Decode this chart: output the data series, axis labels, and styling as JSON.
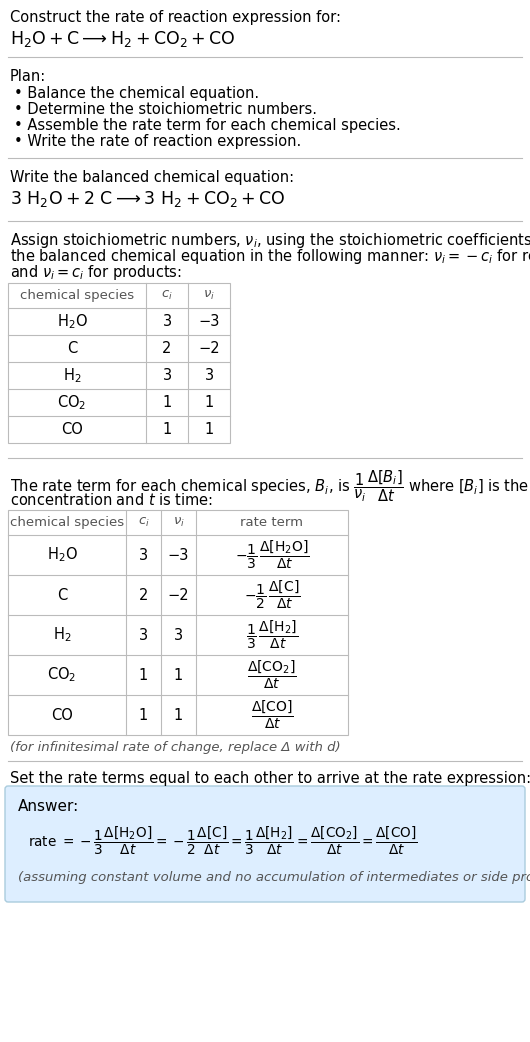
{
  "title_line1": "Construct the rate of reaction expression for:",
  "plan_header": "Plan:",
  "plan_items": [
    "• Balance the chemical equation.",
    "• Determine the stoichiometric numbers.",
    "• Assemble the rate term for each chemical species.",
    "• Write the rate of reaction expression."
  ],
  "balanced_header": "Write the balanced chemical equation:",
  "table1_headers": [
    "chemical species",
    "c_i",
    "ν_i"
  ],
  "table1_rows": [
    [
      "H_2O",
      "3",
      "−3"
    ],
    [
      "C",
      "2",
      "−2"
    ],
    [
      "H_2",
      "3",
      "3"
    ],
    [
      "CO_2",
      "1",
      "1"
    ],
    [
      "CO",
      "1",
      "1"
    ]
  ],
  "table2_headers": [
    "chemical species",
    "c_i",
    "ν_i",
    "rate term"
  ],
  "table2_rows": [
    [
      "H_2O",
      "3",
      "−3"
    ],
    [
      "C",
      "2",
      "−2"
    ],
    [
      "H_2",
      "3",
      "3"
    ],
    [
      "CO_2",
      "1",
      "1"
    ],
    [
      "CO",
      "1",
      "1"
    ]
  ],
  "infinitesimal_note": "(for infinitesimal rate of change, replace Δ with d)",
  "set_equal_text": "Set the rate terms equal to each other to arrive at the rate expression:",
  "answer_box_color": "#ddeeff",
  "answer_border_color": "#aaccdd",
  "assuming_note": "(assuming constant volume and no accumulation of intermediates or side products)",
  "bg_color": "#ffffff",
  "text_color": "#000000",
  "table_border_color": "#bbbbbb",
  "section_line_color": "#bbbbbb"
}
